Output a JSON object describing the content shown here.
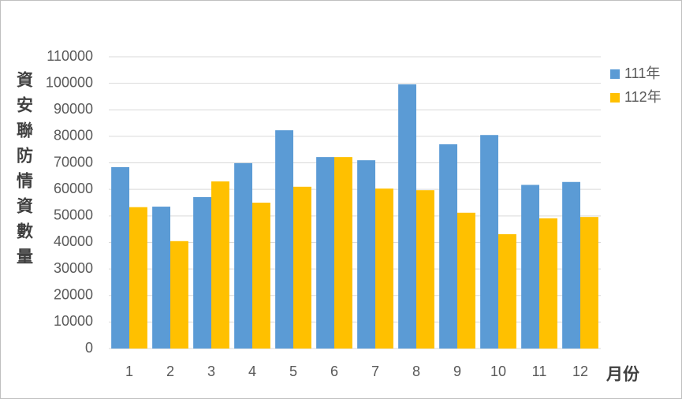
{
  "chart_data": {
    "type": "bar",
    "y_label": "資安聯防情資數量",
    "x_label": "月份",
    "categories": [
      "1",
      "2",
      "3",
      "4",
      "5",
      "6",
      "7",
      "8",
      "9",
      "10",
      "11",
      "12"
    ],
    "series": [
      {
        "name": "111年",
        "color": "#5b9bd5",
        "values": [
          68400,
          53500,
          57100,
          69900,
          82300,
          72200,
          71000,
          99600,
          77000,
          80500,
          61700,
          62800
        ]
      },
      {
        "name": "112年",
        "color": "#ffc000",
        "values": [
          53300,
          40500,
          63000,
          55000,
          61000,
          72200,
          60300,
          59700,
          51200,
          43100,
          49100,
          49600
        ]
      }
    ],
    "ylim": [
      0,
      110000
    ],
    "yticks": [
      0,
      10000,
      20000,
      30000,
      40000,
      50000,
      60000,
      70000,
      80000,
      90000,
      100000,
      110000
    ],
    "grid": true,
    "legend": "right"
  }
}
